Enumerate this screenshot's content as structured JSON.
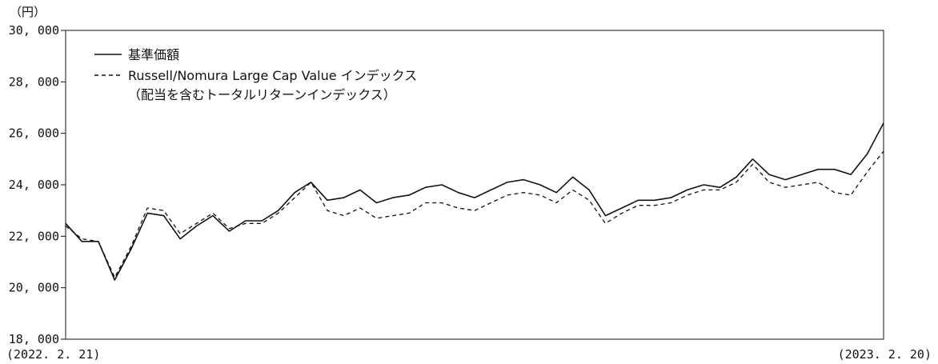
{
  "chart_data": {
    "type": "line",
    "unit_label": "（円）",
    "ylim": [
      18000,
      30000
    ],
    "y_ticks": [
      18000,
      20000,
      22000,
      24000,
      26000,
      28000,
      30000
    ],
    "y_tick_labels": [
      "18, 000",
      "20, 000",
      "22, 000",
      "24, 000",
      "26, 000",
      "28, 000",
      "30, 000"
    ],
    "grid": false,
    "legend_position": "top-left",
    "date_start_label": "(2022. 2. 21)",
    "date_end_label": "(2023. 2. 20)",
    "x": [
      0,
      2,
      4,
      6,
      8,
      10,
      12,
      14,
      16,
      18,
      20,
      22,
      24,
      26,
      28,
      30,
      32,
      34,
      36,
      38,
      40,
      42,
      44,
      46,
      48,
      50,
      52,
      54,
      56,
      58,
      60,
      62,
      64,
      66,
      68,
      70,
      72,
      74,
      76,
      78,
      80,
      82,
      84,
      86,
      88,
      90,
      92,
      94,
      96,
      98,
      100
    ],
    "series": [
      {
        "name": "基準価額",
        "style": "solid",
        "values": [
          22500,
          21800,
          21800,
          20300,
          21500,
          22900,
          22800,
          21900,
          22400,
          22800,
          22200,
          22600,
          22600,
          23000,
          23700,
          24100,
          23400,
          23500,
          23800,
          23300,
          23500,
          23600,
          23900,
          24000,
          23700,
          23500,
          23800,
          24100,
          24200,
          24000,
          23700,
          24300,
          23800,
          22800,
          23100,
          23400,
          23400,
          23500,
          23800,
          24000,
          23900,
          24300,
          25000,
          24400,
          24200,
          24400,
          24600,
          24600,
          24400,
          25200,
          26400
        ]
      },
      {
        "name": "Russell/Nomura Large Cap Value インデックス",
        "name_line2": "（配当を含むトータルリターンインデックス）",
        "style": "dashed",
        "values": [
          22400,
          21900,
          21800,
          20400,
          21600,
          23100,
          23000,
          22100,
          22500,
          22900,
          22300,
          22500,
          22500,
          22900,
          23500,
          24100,
          23000,
          22800,
          23100,
          22700,
          22800,
          22900,
          23300,
          23300,
          23100,
          23000,
          23300,
          23600,
          23700,
          23600,
          23300,
          23800,
          23400,
          22500,
          22900,
          23200,
          23200,
          23300,
          23600,
          23800,
          23800,
          24100,
          24800,
          24100,
          23900,
          24000,
          24100,
          23700,
          23600,
          24500,
          25300
        ]
      }
    ]
  }
}
